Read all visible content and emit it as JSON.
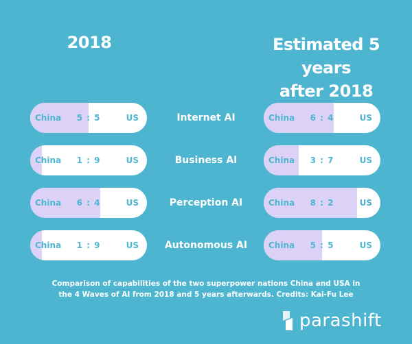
{
  "headings": {
    "left": "2018",
    "right_line1": "Estimated 5 years",
    "right_line2": "after 2018"
  },
  "chart_data": {
    "type": "bar",
    "categories": [
      "Internet AI",
      "Business AI",
      "Perception AI",
      "Autonomous AI"
    ],
    "left_label": "China",
    "right_label": "US",
    "series": [
      {
        "name": "2018",
        "ratios": [
          "5 : 5",
          "1 : 9",
          "6 : 4",
          "1 : 9"
        ],
        "china_share": [
          0.5,
          0.1,
          0.6,
          0.1
        ]
      },
      {
        "name": "Estimated 5 years after 2018",
        "ratios": [
          "6 : 4",
          "3 : 7",
          "8 : 2",
          "5 : 5"
        ],
        "china_share": [
          0.6,
          0.3,
          0.8,
          0.5
        ]
      }
    ]
  },
  "caption": {
    "line1": "Comparison of capabilities of the two superpower nations China and USA in",
    "line2": "the 4 Waves of AI from 2018 and 5 years afterwards. Credits: Kai-Fu Lee"
  },
  "logo": {
    "text": "parashift",
    "icon": "parashift-logo-icon"
  },
  "colors": {
    "background": "#4eb5d0",
    "china_fill": "#dcd2f7",
    "us_fill": "#ffffff",
    "text": "#ffffff"
  }
}
